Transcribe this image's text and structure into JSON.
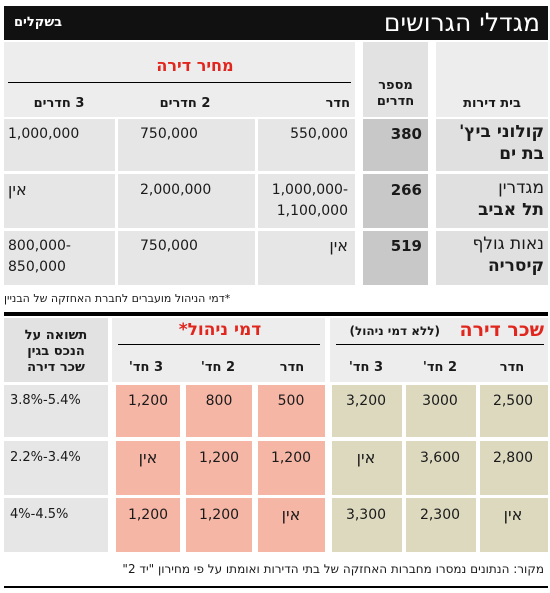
{
  "title": "מגדלי הגרושים",
  "unit_label": "בשקלים",
  "price_table": {
    "group_header": "מחיר דירה",
    "columns": {
      "project": "בית דירות",
      "rooms_count": "מספר חדרים",
      "room": "חדר",
      "two_rooms": "2 חדרים",
      "three_rooms": "3 חדרים"
    },
    "rows": [
      {
        "name_line1": "קולוני ביץ'",
        "name_line2": "בת ים",
        "rooms": "380",
        "room": "550,000",
        "two": "750,000",
        "three": "1,000,000"
      },
      {
        "name_line1": "מגדרין",
        "name_line2": "תל אביב",
        "rooms": "266",
        "room_line1": "1,000,000-",
        "room_line2": "1,100,000",
        "two": "2,000,000",
        "three": "אין"
      },
      {
        "name_line1": "נאות גולף",
        "name_line2": "קיסריה",
        "rooms": "519",
        "room": "אין",
        "two": "750,000",
        "three_line1": "800,000-",
        "three_line2": "850,000"
      }
    ],
    "footnote": "*דמי הניהול מועברים לחברת האחזקה של הבניין"
  },
  "rent_table": {
    "rent_header": "שכר דירה",
    "rent_subheader": "(ללא דמי ניהול)",
    "mgmt_header": "דמי ניהול*",
    "return_header_line1": "תשואה על",
    "return_header_line2": "הנכס בגין",
    "return_header_line3": "שכר דירה",
    "columns": {
      "room": "חדר",
      "two": "2 חד'",
      "three": "3 חד'"
    },
    "rows": [
      {
        "rent_room": "2,500",
        "rent_two": "3000",
        "rent_three": "3,200",
        "mgmt_room": "500",
        "mgmt_two": "800",
        "mgmt_three": "1,200",
        "return": "3.8%-5.4%"
      },
      {
        "rent_room": "2,800",
        "rent_two": "3,600",
        "rent_three": "אין",
        "mgmt_room": "1,200",
        "mgmt_two": "1,200",
        "mgmt_three": "אין",
        "return": "2.2%-3.4%"
      },
      {
        "rent_room": "אין",
        "rent_two": "2,300",
        "rent_three": "3,300",
        "mgmt_room": "אין",
        "mgmt_two": "1,200",
        "mgmt_three": "1,200",
        "return": "4%-4.5%"
      }
    ]
  },
  "source": "מקור: הנתונים נמסרו מחברות האחזקה של בתי הדירות ואומתו על פי מחירון \"יד 2\""
}
